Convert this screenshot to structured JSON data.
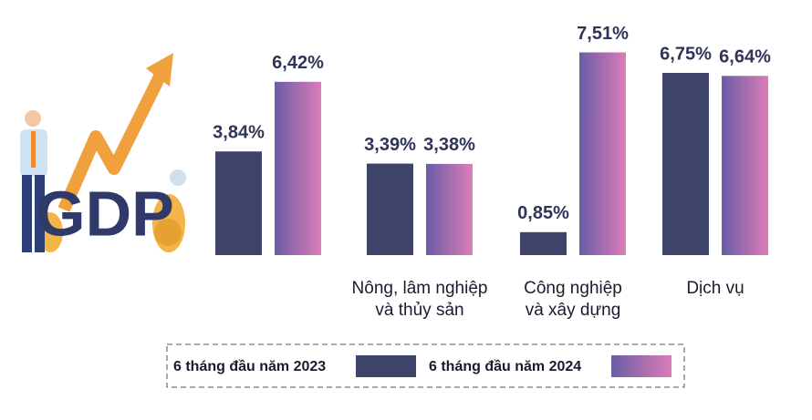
{
  "chart_data": {
    "type": "bar",
    "illustration_text": "GDP",
    "categories": [
      null,
      "Nông, lâm nghiệp\nvà thủy sản",
      "Công nghiệp\nvà xây dựng",
      "Dịch vụ"
    ],
    "series": [
      {
        "name": "6 tháng đầu năm 2023",
        "color": "#3e4369",
        "values": [
          3.84,
          3.39,
          0.85,
          6.75
        ],
        "value_labels": [
          "3,84%",
          "3,39%",
          "0,85%",
          "6,75%"
        ]
      },
      {
        "name": "6 tháng đầu năm 2024",
        "color": [
          "#6a5ca6",
          "#dc7db8"
        ],
        "values": [
          6.42,
          3.38,
          7.51,
          6.64
        ],
        "value_labels": [
          "6,42%",
          "3,38%",
          "7,51%",
          "6,64%"
        ]
      }
    ],
    "ylim": [
      0,
      8
    ]
  }
}
